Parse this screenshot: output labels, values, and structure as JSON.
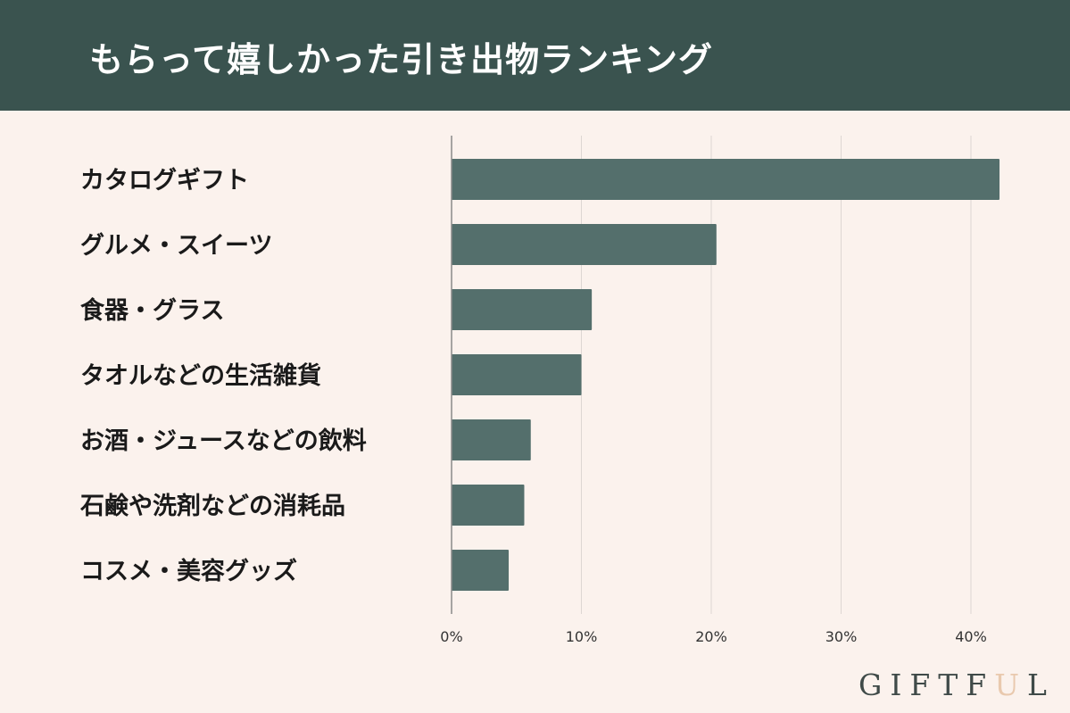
{
  "header": {
    "title": "もらって嬉しかった引き出物ランキング"
  },
  "brand": {
    "pre": "GIFTF",
    "accent": "U",
    "post": "L",
    "accent_color": "#e9c9ae"
  },
  "colors": {
    "header_bg": "#3a534f",
    "page_bg": "#fbf2ed",
    "bar": "#546f6c",
    "grid": "#ddd7d3",
    "axis": "#8a8a8a"
  },
  "chart_data": {
    "type": "bar",
    "orientation": "horizontal",
    "title": "",
    "xlabel": "",
    "ylabel": "",
    "categories": [
      "カタログギフト",
      "グルメ・スイーツ",
      "食器・グラス",
      "タオルなどの生活雑貨",
      "お酒・ジュースなどの飲料",
      "石鹸や洗剤などの消耗品",
      "コスメ・美容グッズ"
    ],
    "values": [
      42.2,
      20.4,
      10.8,
      10.0,
      6.1,
      5.6,
      4.4
    ],
    "unit": "%",
    "xlim": [
      0,
      45
    ],
    "ticks": [
      0,
      10,
      20,
      30,
      40
    ],
    "tick_labels": [
      "0%",
      "10%",
      "20%",
      "30%",
      "40%"
    ],
    "grid": true,
    "legend": "none"
  }
}
